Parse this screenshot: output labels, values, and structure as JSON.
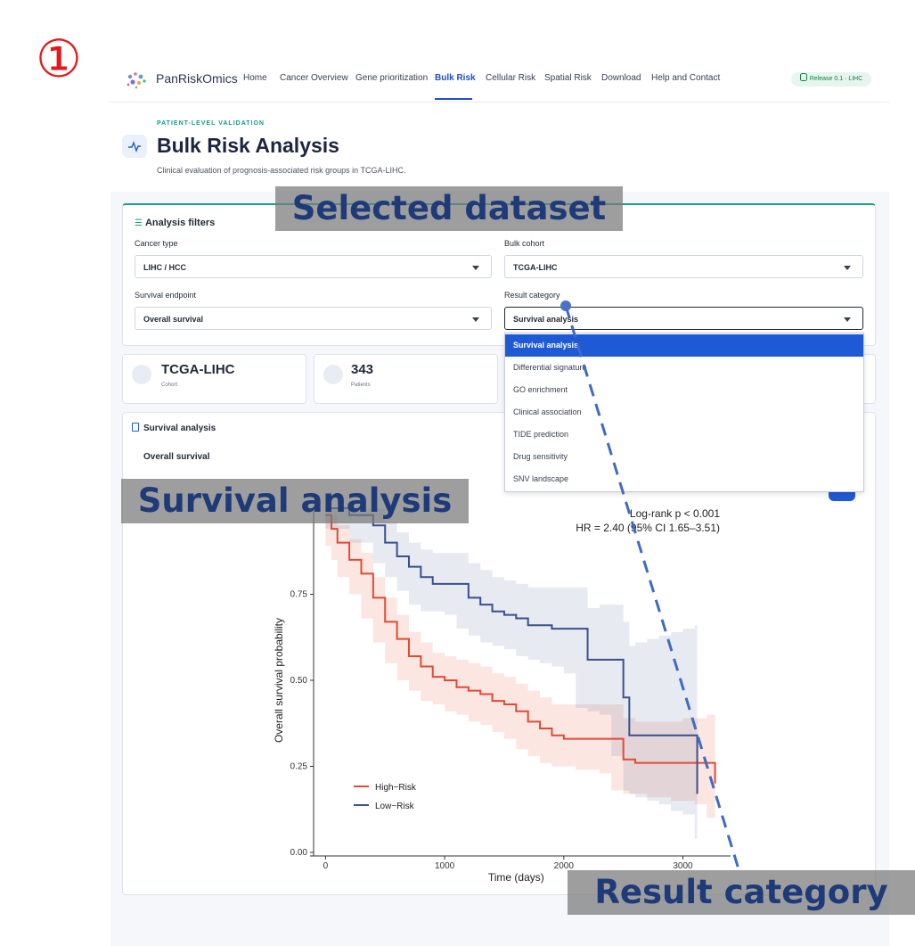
{
  "step_marker": "①",
  "header": {
    "brand": "PanRiskOmics",
    "nav": [
      {
        "label": "Home",
        "active": false
      },
      {
        "label": "Cancer Overview",
        "active": false
      },
      {
        "label": "Gene prioritization",
        "active": false
      },
      {
        "label": "Bulk Risk",
        "active": true
      },
      {
        "label": "Cellular Risk",
        "active": false
      },
      {
        "label": "Spatial Risk",
        "active": false
      },
      {
        "label": "Download",
        "active": false
      },
      {
        "label": "Help and Contact",
        "active": false
      }
    ],
    "release_badge": "Release 0.1 · LIHC"
  },
  "page": {
    "eyebrow": "PATIENT-LEVEL VALIDATION",
    "title": "Bulk Risk Analysis",
    "subtitle": "Clinical evaluation of prognosis-associated risk groups in TCGA-LIHC."
  },
  "filters": {
    "heading": "Analysis filters",
    "cancer_type": {
      "label": "Cancer type",
      "value": "LIHC / HCC"
    },
    "bulk_cohort": {
      "label": "Bulk cohort",
      "value": "TCGA-LIHC"
    },
    "survival_endpoint": {
      "label": "Survival endpoint",
      "value": "Overall survival"
    },
    "result_category": {
      "label": "Result category",
      "value": "Survival analysis",
      "options": [
        "Survival analysis",
        "Differential signature",
        "GO enrichment",
        "Clinical association",
        "TIDE prediction",
        "Drug sensitivity",
        "SNV landscape"
      ]
    }
  },
  "stats": {
    "cohort": {
      "value": "TCGA-LIHC",
      "caption": "Cohort"
    },
    "patients": {
      "value": "343",
      "caption": "Patients"
    }
  },
  "survival_panel": {
    "heading": "Survival analysis",
    "subheading": "Overall survival"
  },
  "callouts": {
    "selected_dataset": "Selected dataset",
    "survival_analysis": "Survival analysis",
    "result_category": "Result category"
  },
  "colors": {
    "high_risk": "#e04b35",
    "low_risk": "#3b4f8a",
    "accent": "#1f5ad6",
    "teal": "#17a08a"
  },
  "chart_data": {
    "type": "line",
    "title": "",
    "xlabel": "Time (days)",
    "ylabel": "Overall survival probability",
    "xlim": [
      -100,
      3400
    ],
    "ylim": [
      0.0,
      1.0
    ],
    "x_ticks": [
      0,
      1000,
      2000,
      3000
    ],
    "y_ticks": [
      0.0,
      0.25,
      0.5,
      0.75
    ],
    "y_tick_labels": [
      "0.00",
      "0.25",
      "0.50",
      "0.75"
    ],
    "annotations": [
      "Log-rank p < 0.001",
      "HR = 2.40 (95% CI 1.65–3.51)"
    ],
    "legend_position": "bottom-left",
    "series": [
      {
        "name": "High−Risk",
        "color": "#e04b35",
        "x": [
          0,
          50,
          100,
          200,
          300,
          400,
          500,
          600,
          700,
          800,
          900,
          1000,
          1100,
          1200,
          1300,
          1400,
          1500,
          1600,
          1700,
          1800,
          1900,
          2000,
          2100,
          2200,
          2300,
          2400,
          2500,
          2600,
          2700,
          2800,
          2900,
          3000,
          3100,
          3200,
          3270
        ],
        "y": [
          0.98,
          0.94,
          0.9,
          0.85,
          0.81,
          0.74,
          0.67,
          0.62,
          0.57,
          0.54,
          0.51,
          0.5,
          0.48,
          0.47,
          0.46,
          0.44,
          0.43,
          0.41,
          0.38,
          0.36,
          0.34,
          0.33,
          0.33,
          0.33,
          0.33,
          0.33,
          0.27,
          0.26,
          0.26,
          0.26,
          0.26,
          0.26,
          0.26,
          0.26,
          0.2
        ],
        "ci_lower": [
          0.94,
          0.89,
          0.85,
          0.8,
          0.75,
          0.68,
          0.61,
          0.55,
          0.5,
          0.47,
          0.44,
          0.43,
          0.41,
          0.4,
          0.38,
          0.37,
          0.35,
          0.33,
          0.3,
          0.28,
          0.26,
          0.25,
          0.25,
          0.24,
          0.24,
          0.23,
          0.18,
          0.17,
          0.17,
          0.16,
          0.16,
          0.15,
          0.15,
          0.14,
          0.1
        ],
        "ci_upper": [
          1.0,
          0.98,
          0.95,
          0.91,
          0.87,
          0.8,
          0.74,
          0.69,
          0.64,
          0.61,
          0.58,
          0.57,
          0.56,
          0.55,
          0.54,
          0.52,
          0.51,
          0.49,
          0.47,
          0.45,
          0.43,
          0.43,
          0.43,
          0.43,
          0.43,
          0.43,
          0.39,
          0.38,
          0.38,
          0.38,
          0.38,
          0.39,
          0.39,
          0.4,
          0.4
        ]
      },
      {
        "name": "Low−Risk",
        "color": "#3b4f8a",
        "x": [
          0,
          200,
          400,
          500,
          600,
          700,
          800,
          900,
          1000,
          1100,
          1200,
          1300,
          1400,
          1500,
          1600,
          1700,
          1800,
          1900,
          2000,
          2100,
          2200,
          2300,
          2400,
          2500,
          2550,
          2600,
          2700,
          2800,
          2900,
          3000,
          3100,
          3120
        ],
        "y": [
          1.0,
          0.98,
          0.95,
          0.9,
          0.86,
          0.83,
          0.8,
          0.78,
          0.78,
          0.78,
          0.74,
          0.72,
          0.7,
          0.69,
          0.68,
          0.66,
          0.66,
          0.65,
          0.65,
          0.65,
          0.56,
          0.56,
          0.56,
          0.45,
          0.34,
          0.34,
          0.34,
          0.34,
          0.34,
          0.34,
          0.34,
          0.17
        ],
        "ci_lower": [
          0.97,
          0.94,
          0.9,
          0.84,
          0.8,
          0.76,
          0.72,
          0.7,
          0.7,
          0.69,
          0.65,
          0.63,
          0.61,
          0.6,
          0.59,
          0.57,
          0.56,
          0.55,
          0.54,
          0.52,
          0.42,
          0.41,
          0.4,
          0.28,
          0.18,
          0.17,
          0.16,
          0.15,
          0.14,
          0.12,
          0.11,
          0.04
        ],
        "ci_upper": [
          1.0,
          1.0,
          1.0,
          0.96,
          0.93,
          0.9,
          0.88,
          0.87,
          0.87,
          0.87,
          0.84,
          0.82,
          0.8,
          0.79,
          0.78,
          0.77,
          0.77,
          0.77,
          0.77,
          0.77,
          0.71,
          0.72,
          0.72,
          0.67,
          0.6,
          0.61,
          0.62,
          0.63,
          0.64,
          0.65,
          0.66,
          0.66
        ]
      }
    ]
  }
}
